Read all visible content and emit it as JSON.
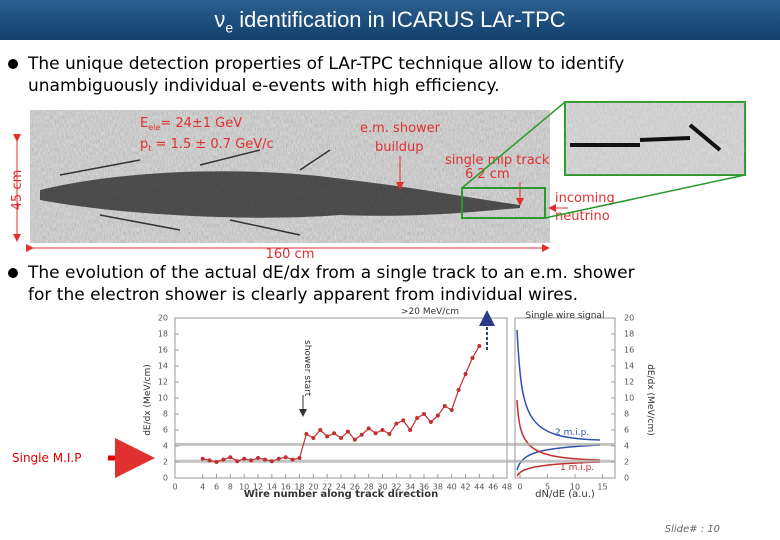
{
  "header": {
    "title_symbol": "ν",
    "title_subscript": "e",
    "title": "identification in ICARUS LAr-TPC"
  },
  "bullets": [
    [
      "The unique detection properties of LAr-TPC technique allow to identify",
      "unambiguously individual e-events with high efficiency."
    ],
    [
      "The evolution of the actual dE/dx from a single track to an e.m. shower",
      "for the electron shower is clearly apparent from individual wires."
    ]
  ],
  "event_display": {
    "energy": {
      "symbol": "E",
      "subscript": "ele",
      "text": "= 24±1 GeV"
    },
    "momentum": {
      "symbol": "p",
      "subscript": "t",
      "text": " = 1.5 ± 0.7 GeV/c"
    },
    "shower": [
      "e.m. shower",
      "buildup"
    ],
    "mip_track": [
      "single mip track",
      "6.2 cm"
    ],
    "neutrino": [
      "incoming",
      "neutrino"
    ],
    "height": "45 cm",
    "width": "160 cm"
  },
  "chart_data": {
    "type": "line",
    "xlabel": "Wire number along track direction",
    "ylabel": "dE/dx (MeV/cm)",
    "x": [
      4,
      5,
      6,
      7,
      8,
      9,
      10,
      11,
      12,
      13,
      14,
      15,
      16,
      17,
      18,
      19,
      20,
      21,
      22,
      23,
      24,
      25,
      26,
      27,
      28,
      29,
      30,
      31,
      32,
      33,
      34,
      35,
      36,
      37,
      38,
      39,
      40,
      41,
      42,
      43,
      44
    ],
    "series": [
      {
        "color": "#c03030",
        "values": [
          2.4,
          2.2,
          2.0,
          2.3,
          2.6,
          2.1,
          2.4,
          2.2,
          2.5,
          2.3,
          2.1,
          2.4,
          2.6,
          2.3,
          2.5,
          5.5,
          5.0,
          6.0,
          5.2,
          5.6,
          5.0,
          5.8,
          4.8,
          5.4,
          6.2,
          5.6,
          6.0,
          5.5,
          6.8,
          7.2,
          6.0,
          7.5,
          8.0,
          7.0,
          7.8,
          9.0,
          8.5,
          11.0,
          13.0,
          15.0,
          16.5
        ]
      }
    ],
    "xlim": [
      0,
      48
    ],
    "xticks": [
      0,
      4,
      6,
      8,
      10,
      12,
      14,
      16,
      18,
      20,
      22,
      24,
      26,
      28,
      30,
      32,
      34,
      36,
      38,
      40,
      42,
      44,
      46,
      48
    ],
    "ylim": [
      0,
      20
    ],
    "yticks": [
      0,
      2,
      4,
      6,
      8,
      10,
      12,
      14,
      16,
      18,
      20
    ],
    "mip_lines": [
      2.1,
      4.2
    ],
    "overflow_label": ">20 MeV/cm",
    "shower_start_label": "shower start",
    "right_panel": {
      "title": "Single wire signal",
      "xlabel": "dN/dE (a.u.)",
      "ylabel": "dE/dx (MeV/cm)",
      "xticks": [
        0,
        5,
        10,
        15
      ],
      "labels": [
        "2 m.i.p.",
        "1 m.i.p."
      ]
    }
  },
  "side_label": "Single M.I.P",
  "footer": "Slide# : 10"
}
